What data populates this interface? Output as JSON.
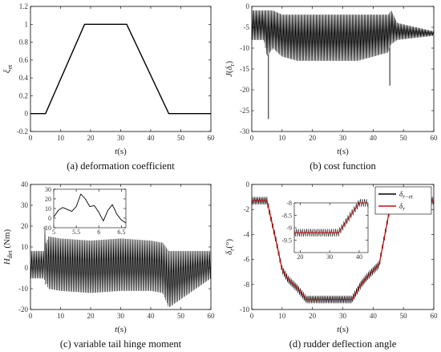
{
  "chart_data": [
    {
      "id": "a",
      "type": "line",
      "caption": "(a) deformation coefficient",
      "xlabel": "t(s)",
      "ylabel": "ξ_et",
      "xlim": [
        0,
        60
      ],
      "ylim": [
        -0.2,
        1.2
      ],
      "xticks": [
        0,
        10,
        20,
        30,
        40,
        50,
        60
      ],
      "yticks": [
        -0.2,
        0,
        0.2,
        0.4,
        0.6,
        0.8,
        1,
        1.2
      ],
      "grid": false,
      "series": [
        {
          "color": "#000000",
          "x": [
            0,
            5,
            18,
            32,
            46,
            60
          ],
          "y": [
            0,
            0,
            1,
            1,
            0,
            0
          ]
        }
      ]
    },
    {
      "id": "b",
      "type": "line",
      "caption": "(b) cost function",
      "xlabel": "t(s)",
      "ylabel": "J(δ_r)",
      "xlim": [
        0,
        60
      ],
      "ylim": [
        -30,
        0
      ],
      "xticks": [
        0,
        10,
        20,
        30,
        40,
        50,
        60
      ],
      "yticks": [
        -30,
        -25,
        -20,
        -15,
        -10,
        -5,
        0
      ],
      "grid": false,
      "envelope": {
        "x": [
          0,
          4,
          5,
          7,
          10,
          15,
          25,
          35,
          45,
          46,
          48,
          60
        ],
        "upper": [
          -1,
          -1,
          -1,
          -1,
          -2,
          -2,
          -2,
          -2,
          -2,
          -1,
          -4,
          -6
        ],
        "lower": [
          -8,
          -8,
          -12,
          -10,
          -12,
          -13,
          -13,
          -13,
          -11,
          -9,
          -8,
          -7
        ]
      },
      "spikes": [
        {
          "x": 5.5,
          "y": -27
        },
        {
          "x": 45.5,
          "y": -19
        }
      ]
    },
    {
      "id": "c",
      "type": "line",
      "caption": "(c) variable tail hinge moment",
      "xlabel": "t(s)",
      "ylabel": "H_det (Nm)",
      "xlim": [
        0,
        60
      ],
      "ylim": [
        -20,
        40
      ],
      "xticks": [
        0,
        10,
        20,
        30,
        40,
        50,
        60
      ],
      "yticks": [
        -20,
        -10,
        0,
        10,
        20,
        30,
        40
      ],
      "grid": false,
      "envelope": {
        "x": [
          0,
          4.5,
          5,
          5.2,
          6,
          10,
          20,
          30,
          40,
          44,
          46,
          60
        ],
        "upper": [
          8,
          8,
          28,
          12,
          15,
          14,
          13,
          14,
          13,
          12,
          8,
          8
        ],
        "lower": [
          -5,
          -5,
          -8,
          -7,
          -10,
          -11,
          -12,
          -11,
          -11,
          -12,
          -19,
          -5
        ]
      },
      "inset": {
        "xlim": [
          5,
          6.6
        ],
        "ylim": [
          -10,
          30
        ],
        "xticks": [
          5,
          5.5,
          6,
          6.5
        ],
        "xtick_labels": [
          "5",
          "5.5",
          "6",
          "6.5"
        ],
        "yticks": [
          -10,
          0,
          10,
          20,
          30
        ],
        "x": [
          5.0,
          5.1,
          5.2,
          5.3,
          5.4,
          5.5,
          5.6,
          5.7,
          5.8,
          5.9,
          6.0,
          6.1,
          6.2,
          6.3,
          6.4,
          6.5,
          6.6
        ],
        "y": [
          1,
          8,
          11,
          9,
          7,
          12,
          25,
          20,
          12,
          13,
          6,
          -3,
          8,
          14,
          4,
          -2,
          -5
        ]
      }
    },
    {
      "id": "d",
      "type": "line",
      "caption": "(d) rudder deflection angle",
      "xlabel": "t(s)",
      "ylabel": "δ_r(°)",
      "xlim": [
        0,
        60
      ],
      "ylim": [
        -10,
        0
      ],
      "xticks": [
        0,
        10,
        20,
        30,
        40,
        50,
        60
      ],
      "yticks": [
        -10,
        -8,
        -6,
        -4,
        -2,
        0
      ],
      "grid": false,
      "legend_position": "top-right",
      "series": [
        {
          "name": "δ_{r−et}",
          "color": "#000000",
          "oscillation": 0.6,
          "x": [
            0,
            5,
            8,
            10,
            12,
            15,
            18,
            25,
            33,
            36,
            38,
            42,
            46,
            60
          ],
          "y": [
            -1.3,
            -1.3,
            -4.5,
            -6.8,
            -7.6,
            -8.3,
            -9.2,
            -9.2,
            -9.2,
            -8.0,
            -7.4,
            -6.4,
            -1.3,
            -1.3
          ]
        },
        {
          "name": "δ_r",
          "color": "#c21010",
          "oscillation": 0,
          "x": [
            0,
            5,
            8,
            10,
            12,
            15,
            18,
            25,
            33,
            36,
            38,
            42,
            46,
            60
          ],
          "y": [
            -1.3,
            -1.3,
            -4.5,
            -6.8,
            -7.6,
            -8.3,
            -9.2,
            -9.2,
            -9.2,
            -8.0,
            -7.4,
            -6.4,
            -1.3,
            -1.3
          ]
        }
      ],
      "inset": {
        "xlim": [
          18,
          43
        ],
        "ylim": [
          -10,
          -8
        ],
        "xticks": [
          20,
          30,
          40
        ],
        "yticks": [
          -9.5,
          -9,
          -8.5,
          -8
        ],
        "ytick_labels": [
          "-9.5",
          "-9",
          "-8.5",
          "-8"
        ],
        "x": [
          18,
          33,
          40,
          43
        ],
        "y": [
          -9.2,
          -9.2,
          -8.0,
          -8.0
        ]
      }
    }
  ]
}
